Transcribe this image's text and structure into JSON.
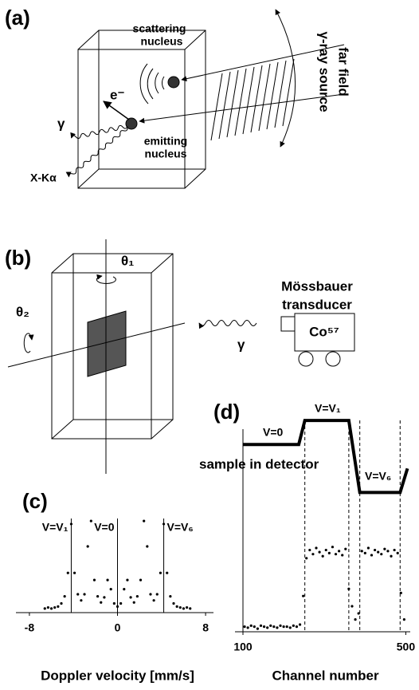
{
  "panels": {
    "a": {
      "label": "(a)",
      "scattering": [
        "scattering",
        "nucleus"
      ],
      "emitting": [
        "emitting",
        "nucleus"
      ],
      "source": [
        "far field",
        "γ-ray source"
      ],
      "gamma": "γ",
      "electron": "e⁻",
      "xray": "X-Kα"
    },
    "b": {
      "label": "(b)",
      "theta1": "θ₁",
      "theta2": "θ₂",
      "transducer": [
        "Mössbauer",
        "transducer"
      ],
      "isotope": "Co⁵⁷",
      "gamma": "γ",
      "sample": "sample in detector"
    }
  },
  "chart_data": [
    {
      "type": "scatter",
      "title": "(c)",
      "xlabel": "Doppler velocity [mm/s]",
      "color": "#000000",
      "xlim": [
        -8.5,
        8.5
      ],
      "xticks": [
        -8,
        0,
        8
      ],
      "ylim": [
        -0.02,
        1.1
      ],
      "x": [
        -6.6,
        -6.3,
        -6.0,
        -5.7,
        -5.4,
        -5.1,
        -4.8,
        -4.5,
        -4.2,
        -3.9,
        -3.6,
        -3.3,
        -3.0,
        -2.7,
        -2.4,
        -2.1,
        -1.8,
        -1.5,
        -1.2,
        -0.9,
        -0.6,
        -0.3,
        0,
        0.3,
        0.6,
        0.9,
        1.2,
        1.5,
        1.8,
        2.1,
        2.4,
        2.7,
        3.0,
        3.3,
        3.6,
        3.9,
        4.2,
        4.5,
        4.8,
        5.1,
        5.4,
        5.7,
        6.0,
        6.3,
        6.6
      ],
      "values": [
        0.02,
        0.03,
        0.02,
        0.03,
        0.04,
        0.07,
        0.14,
        0.37,
        0.85,
        0.37,
        0.16,
        0.1,
        0.16,
        0.63,
        0.88,
        0.3,
        0.14,
        0.08,
        0.13,
        0.3,
        0.21,
        0.07,
        0.04,
        0.07,
        0.21,
        0.3,
        0.13,
        0.08,
        0.14,
        0.3,
        0.88,
        0.63,
        0.16,
        0.1,
        0.16,
        0.37,
        0.85,
        0.37,
        0.14,
        0.07,
        0.04,
        0.03,
        0.02,
        0.03,
        0.02
      ],
      "vlines": [
        {
          "x": -4.2,
          "label": "V=V₁"
        },
        {
          "x": 0,
          "label": "V=0"
        },
        {
          "x": 4.2,
          "label": "V=V₆"
        }
      ]
    },
    {
      "type": "scatter",
      "title": "(d)",
      "xlabel": "Channel number",
      "color": "#000000",
      "xlim": [
        100,
        505
      ],
      "xticks": [
        100,
        500
      ],
      "ylim": [
        0,
        2.28
      ],
      "y2lim": [
        -7.8,
        1.9
      ],
      "dashed_lines": [
        252,
        360,
        387,
        486
      ],
      "series": [
        {
          "type": "scatter",
          "color": "#000000",
          "x": [
            104,
            112,
            120,
            128,
            136,
            144,
            152,
            160,
            168,
            176,
            184,
            192,
            200,
            208,
            216,
            224,
            232,
            240,
            248,
            256,
            264,
            272,
            280,
            288,
            296,
            304,
            312,
            320,
            328,
            336,
            344,
            352,
            360,
            368,
            376,
            384,
            392,
            400,
            408,
            416,
            424,
            432,
            440,
            448,
            456,
            464,
            472,
            480,
            488,
            496
          ],
          "values": [
            0.05,
            0.04,
            0.06,
            0.05,
            0.03,
            0.06,
            0.05,
            0.04,
            0.06,
            0.05,
            0.04,
            0.06,
            0.05,
            0.05,
            0.04,
            0.06,
            0.05,
            0.07,
            0.35,
            0.72,
            0.8,
            0.76,
            0.82,
            0.78,
            0.74,
            0.8,
            0.77,
            0.83,
            0.76,
            0.79,
            0.75,
            0.81,
            0.42,
            0.25,
            0.12,
            0.18,
            0.79,
            0.77,
            0.82,
            0.75,
            0.8,
            0.78,
            0.76,
            0.81,
            0.79,
            0.74,
            0.8,
            0.77,
            0.38,
            0.12
          ]
        },
        {
          "type": "line",
          "axis": "y2",
          "color": "#000000",
          "x": [
            100,
            237,
            252,
            360,
            387,
            486,
            504
          ],
          "values": [
            0,
            0,
            1,
            1,
            -2,
            -2,
            -1
          ],
          "annotations": [
            "V=0",
            "V=V₁",
            "V=V₆"
          ]
        }
      ]
    }
  ]
}
